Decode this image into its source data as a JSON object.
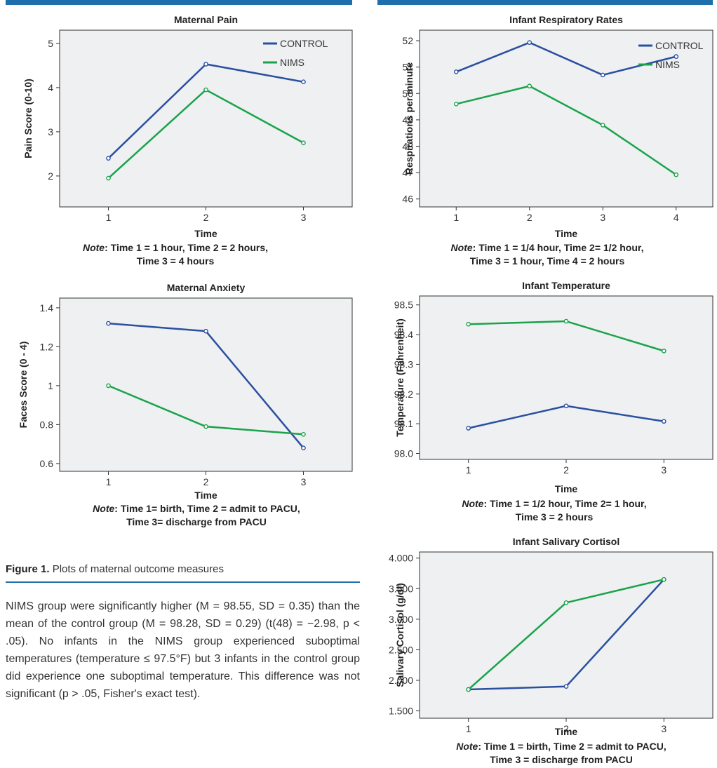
{
  "figure_caption": {
    "label": "Figure 1.",
    "text": "Plots of maternal outcome measures"
  },
  "body_text": "NIMS group were significantly higher (M = 98.55, SD = 0.35) than the mean of the control group (M = 98.28, SD = 0.29) (t(48) = −2.98, p < .05). No infants in the NIMS group experienced suboptimal temperatures (temperature ≤ 97.5°F) but 3 infants in the control group did experience one suboptimal temperature. This difference was not significant (p > .05, Fisher's exact test).",
  "colors": {
    "control": "#2b4fa0",
    "nims": "#1aa34a",
    "plot_bg": "#eef0f2",
    "accent": "#1f6fad"
  },
  "chart_data": [
    {
      "id": "maternal-pain",
      "type": "line",
      "title": "Maternal Pain",
      "xlabel": "Time",
      "ylabel": "Pain Score (0-10)",
      "x": [
        1,
        2,
        3
      ],
      "series": [
        {
          "name": "CONTROL",
          "values": [
            2.4,
            4.53,
            4.13
          ]
        },
        {
          "name": "NIMS",
          "values": [
            1.95,
            3.95,
            2.75
          ]
        }
      ],
      "yticks": [
        "2",
        "3",
        "4",
        "5"
      ],
      "xticks": [
        "1",
        "2",
        "3"
      ],
      "ylim": [
        1.3,
        5.3
      ],
      "xlim": [
        0.5,
        3.5
      ],
      "legend": "right",
      "note_label": "Note",
      "note_lines": [
        ": Time 1 = 1 hour, Time 2 = 2 hours,",
        "Time 3 = 4 hours"
      ]
    },
    {
      "id": "infant-respiratory-rates",
      "type": "line",
      "title": "Infant Respiratory Rates",
      "xlabel": "Time",
      "ylabel": "Respirations per minute",
      "x": [
        1,
        2,
        3,
        4
      ],
      "series": [
        {
          "name": "CONTROL",
          "values": [
            50.82,
            51.93,
            50.7,
            51.4
          ]
        },
        {
          "name": "NIMS",
          "values": [
            49.6,
            50.28,
            48.8,
            46.92
          ]
        }
      ],
      "yticks": [
        "46",
        "47",
        "48",
        "49",
        "50",
        "51",
        "52"
      ],
      "xticks": [
        "1",
        "2",
        "3",
        "4"
      ],
      "ylim": [
        45.7,
        52.4
      ],
      "xlim": [
        0.5,
        4.5
      ],
      "legend": "right",
      "note_label": "Note",
      "note_lines": [
        ": Time 1 = 1/4 hour, Time 2= 1/2 hour,",
        "Time 3 = 1 hour, Time 4 = 2 hours"
      ]
    },
    {
      "id": "maternal-anxiety",
      "type": "line",
      "title": "Maternal Anxiety",
      "xlabel": "Time",
      "ylabel": "Faces Score (0 - 4)",
      "x": [
        1,
        2,
        3
      ],
      "series": [
        {
          "name": "CONTROL",
          "values": [
            1.32,
            1.28,
            0.68
          ]
        },
        {
          "name": "NIMS",
          "values": [
            1.0,
            0.79,
            0.75
          ]
        }
      ],
      "yticks": [
        "0.6",
        "0.8",
        "1",
        "1.2",
        "1.4"
      ],
      "xticks": [
        "1",
        "2",
        "3"
      ],
      "ylim": [
        0.56,
        1.45
      ],
      "xlim": [
        0.5,
        3.5
      ],
      "legend": "none",
      "note_label": "Note",
      "note_lines": [
        ": Time 1= birth, Time 2 = admit to PACU,",
        "Time 3= discharge from PACU"
      ]
    },
    {
      "id": "infant-temperature",
      "type": "line",
      "title": "Infant Temperature",
      "xlabel": "Time",
      "ylabel": "Temperature (Fahrenheit)",
      "x": [
        1,
        2,
        3
      ],
      "series": [
        {
          "name": "CONTROL",
          "values": [
            98.085,
            98.16,
            98.108
          ]
        },
        {
          "name": "NIMS",
          "values": [
            98.435,
            98.445,
            98.345
          ]
        }
      ],
      "yticks": [
        "98.0",
        "98.1",
        "98.2",
        "98.3",
        "98.4",
        "98.5"
      ],
      "xticks": [
        "1",
        "2",
        "3"
      ],
      "ylim": [
        97.98,
        98.53
      ],
      "xlim": [
        0.5,
        3.5
      ],
      "legend": "none",
      "note_label": "Note",
      "note_lines": [
        ": Time 1 = 1/2 hour, Time 2= 1 hour,",
        "Time 3 = 2 hours"
      ]
    },
    {
      "id": "infant-salivary-cortisol",
      "type": "line",
      "title": "Infant Salivary Cortisol",
      "xlabel": "Time",
      "ylabel": "Salivary Cortisol (g/dl)",
      "x": [
        1,
        2,
        3
      ],
      "series": [
        {
          "name": "CONTROL",
          "values": [
            1.85,
            1.9,
            3.65
          ]
        },
        {
          "name": "NIMS",
          "values": [
            1.85,
            3.27,
            3.65
          ]
        }
      ],
      "yticks": [
        "1.500",
        "2.000",
        "2.500",
        "3.000",
        "3.500",
        "4.000"
      ],
      "xticks": [
        "1",
        "2",
        "3"
      ],
      "ylim": [
        1.38,
        4.1
      ],
      "xlim": [
        0.5,
        3.5
      ],
      "legend": "none",
      "note_label": "Note",
      "note_lines": [
        ": Time 1 = birth, Time 2 = admit to PACU,",
        "Time 3 = discharge from PACU"
      ]
    }
  ]
}
